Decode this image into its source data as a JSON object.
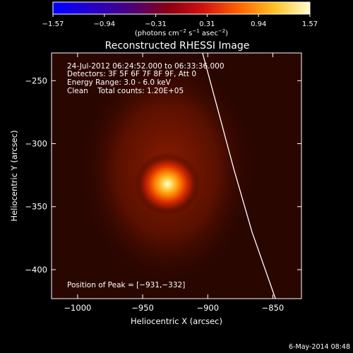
{
  "chart_data": {
    "type": "heatmap",
    "title": "Reconstructed RHESSI Image",
    "colorbar": {
      "ticks": [
        "−1.57",
        "−0.94",
        "−0.31",
        "0.31",
        "0.94",
        "1.57"
      ],
      "label_main": "(photons cm",
      "label_sup1": "−2",
      "label_mid": " s",
      "label_sup2": "−1",
      "label_end": " asec",
      "label_sup3": "−2",
      "label_close": ")",
      "min": -1.57,
      "max": 1.57
    },
    "xlabel": "Heliocentric X (arcsec)",
    "ylabel": "Heliocentric Y (arcsec)",
    "xlim": [
      -1020,
      -828
    ],
    "ylim": [
      -423,
      -228
    ],
    "xticks": [
      -1000,
      -950,
      -900,
      -850
    ],
    "xtick_labels": [
      "−1000",
      "−950",
      "−900",
      "−850"
    ],
    "yticks": [
      -250,
      -300,
      -350,
      -400
    ],
    "ytick_labels": [
      "−250",
      "−300",
      "−350",
      "−400"
    ],
    "annotations": {
      "time_range": "24-Jul-2012 06:24:52.000 to 06:33:36.000",
      "detectors": "Detectors: 3F 5F 6F 7F 8F 9F, Att 0",
      "energy": "Energy Range: 3.0 - 6.0 keV",
      "clean": "Clean    Total counts: 1.20E+05",
      "peak": "Position of Peak = [−931,−332]"
    },
    "peak": {
      "x": -931,
      "y": -332,
      "value": 1.57
    },
    "limb_curve": [
      {
        "x": -904,
        "y": -228
      },
      {
        "x": -893,
        "y": -270
      },
      {
        "x": -880,
        "y": -320
      },
      {
        "x": -866,
        "y": -370
      },
      {
        "x": -848,
        "y": -423
      }
    ],
    "grid": false
  },
  "footer": {
    "date": "6-May-2014 08:48"
  }
}
